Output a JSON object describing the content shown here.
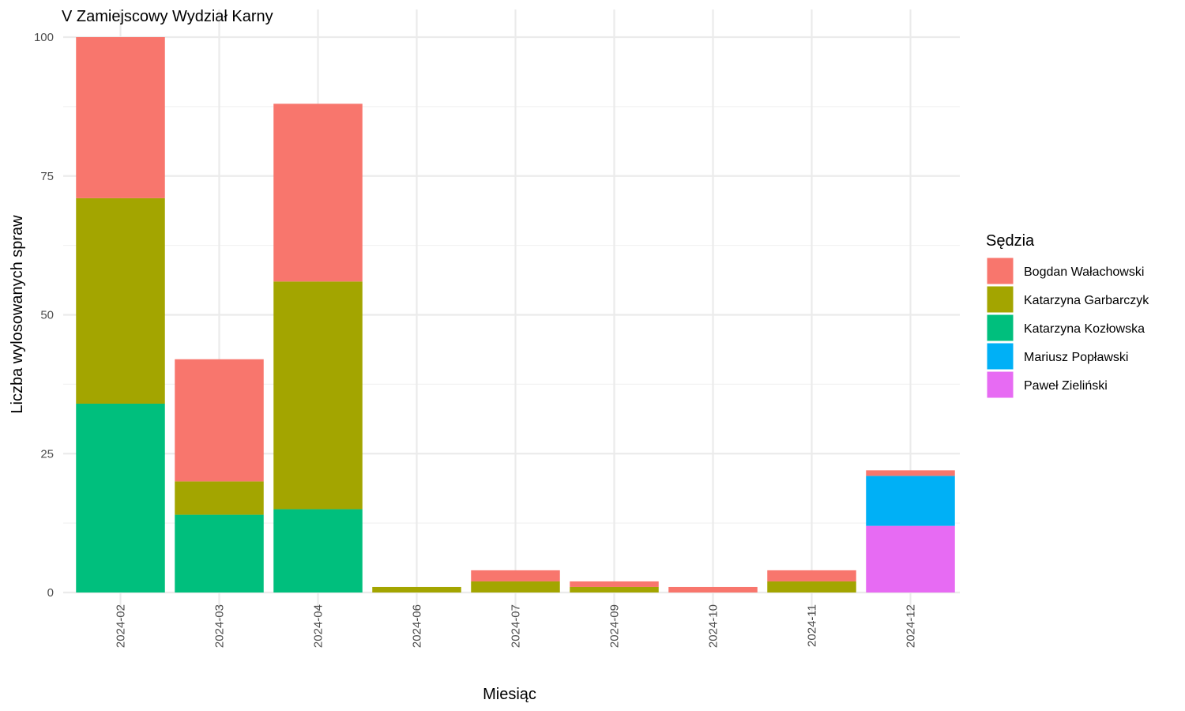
{
  "chart_data": {
    "type": "bar",
    "stacked": true,
    "title": "V Zamiejscowy Wydział Karny",
    "xlabel": "Miesiąc",
    "ylabel": "Liczba wylosowanych spraw",
    "ylim": [
      0,
      100
    ],
    "yticks": [
      0,
      25,
      50,
      75,
      100
    ],
    "grid": true,
    "legend_title": "Sędzia",
    "legend_position": "right",
    "categories": [
      "2024-02",
      "2024-03",
      "2024-04",
      "2024-06",
      "2024-07",
      "2024-09",
      "2024-10",
      "2024-11",
      "2024-12"
    ],
    "series": [
      {
        "name": "Paweł Zieliński",
        "color": "#E76BF3",
        "values": [
          0,
          0,
          0,
          0,
          0,
          0,
          0,
          0,
          12
        ]
      },
      {
        "name": "Mariusz Popławski",
        "color": "#00B0F6",
        "values": [
          0,
          0,
          0,
          0,
          0,
          0,
          0,
          0,
          9
        ]
      },
      {
        "name": "Katarzyna Kozłowska",
        "color": "#00BF7D",
        "values": [
          34,
          14,
          15,
          0,
          0,
          0,
          0,
          0,
          0
        ]
      },
      {
        "name": "Katarzyna Garbarczyk",
        "color": "#A3A500",
        "values": [
          37,
          6,
          41,
          1,
          2,
          1,
          0,
          2,
          0
        ]
      },
      {
        "name": "Bogdan Wałachowski",
        "color": "#F8766D",
        "values": [
          29,
          22,
          32,
          0,
          2,
          1,
          1,
          2,
          1
        ]
      }
    ],
    "legend_order": [
      "Bogdan Wałachowski",
      "Katarzyna Garbarczyk",
      "Katarzyna Kozłowska",
      "Mariusz Popławski",
      "Paweł Zieliński"
    ]
  }
}
